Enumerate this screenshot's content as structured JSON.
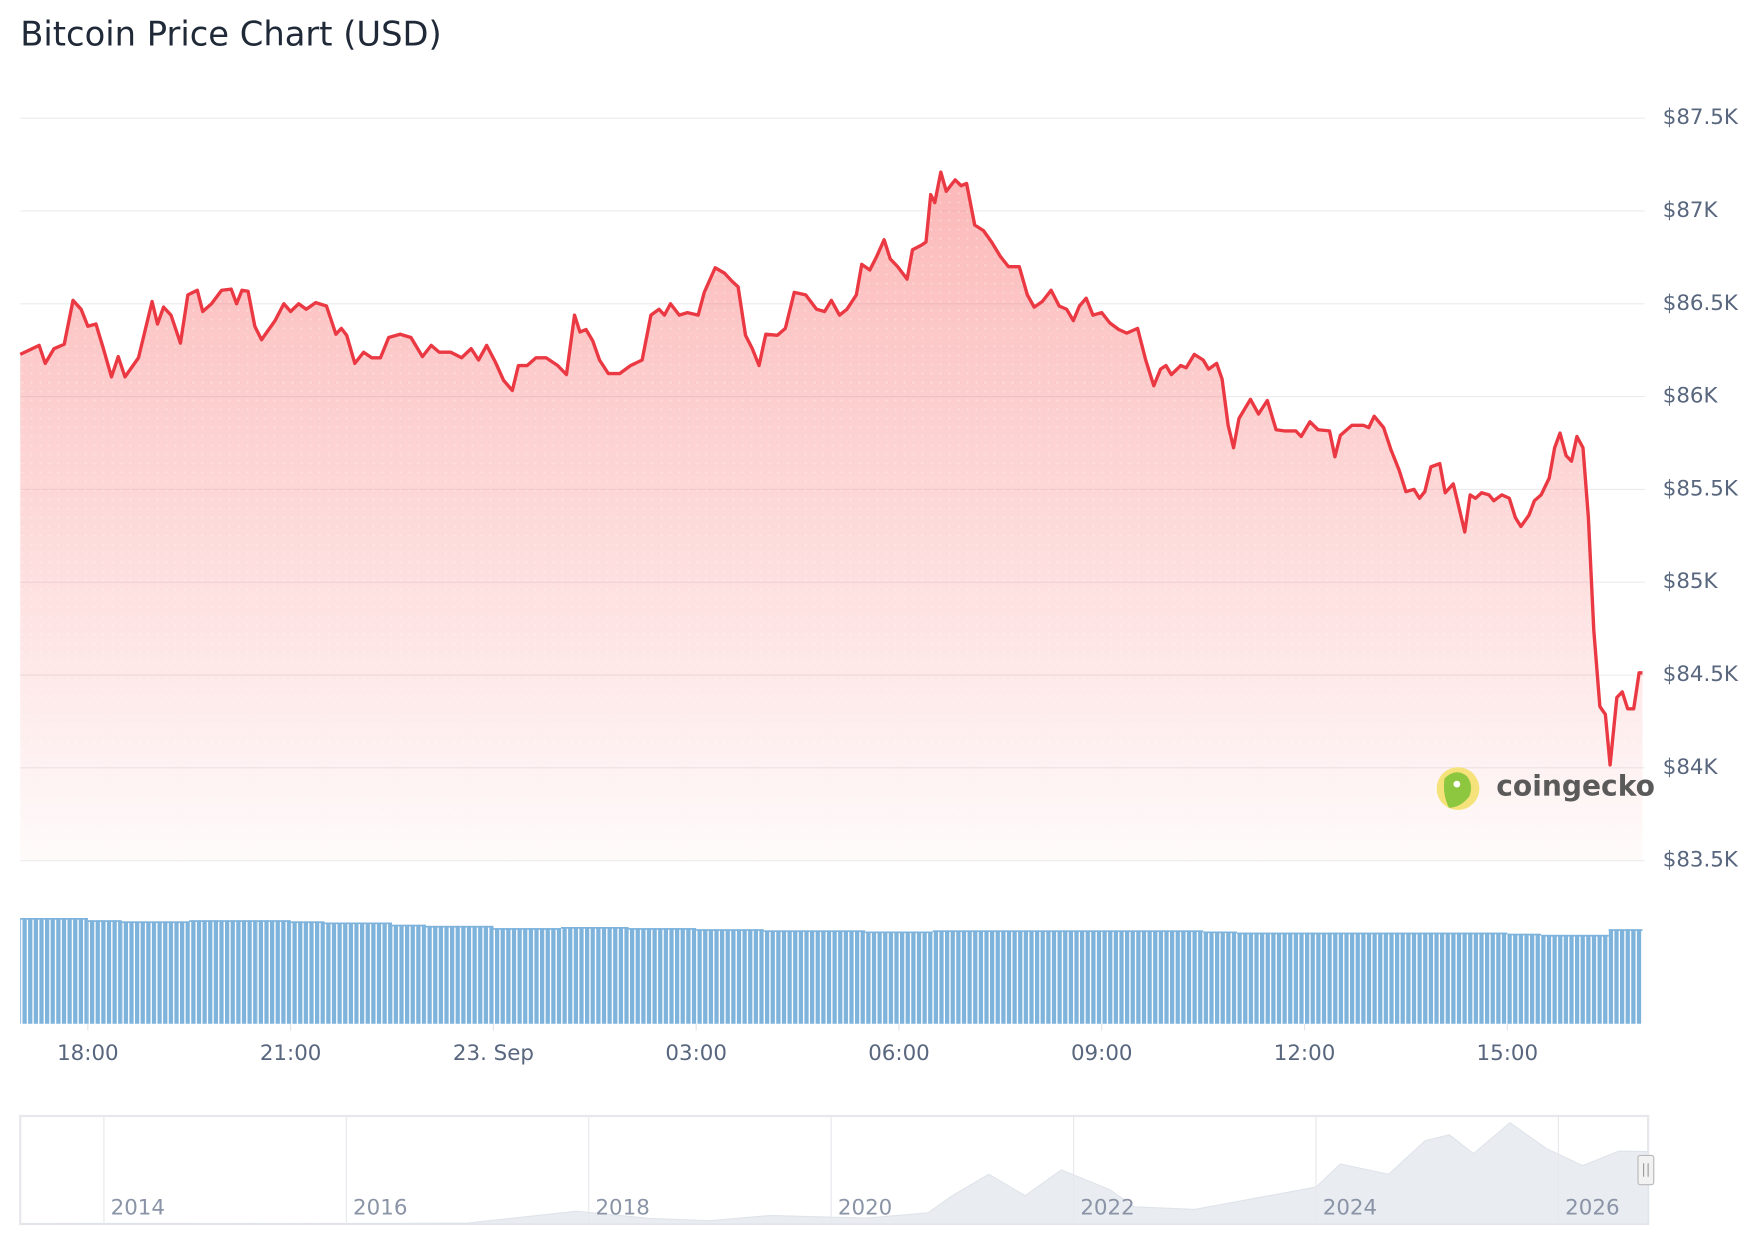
{
  "chart_data": {
    "type": "line",
    "title": "Bitcoin Price Chart (USD)",
    "x": [
      17.0,
      17.28,
      17.37,
      17.5,
      17.65,
      17.78,
      17.9,
      18.0,
      18.12,
      18.23,
      18.35,
      18.45,
      18.55,
      18.75,
      18.95,
      19.03,
      19.12,
      19.23,
      19.37,
      19.48,
      19.62,
      19.7,
      19.83,
      19.98,
      20.12,
      20.2,
      20.28,
      20.37,
      20.47,
      20.57,
      20.65,
      20.77,
      20.9,
      21.0,
      21.12,
      21.23,
      21.37,
      21.53,
      21.67,
      21.75,
      21.83,
      21.95,
      22.08,
      22.2,
      22.33,
      22.45,
      22.62,
      22.78,
      22.95,
      23.08,
      23.2,
      23.37,
      23.53,
      23.67,
      23.78,
      23.9,
      24.03,
      24.15,
      24.28,
      24.37,
      24.5,
      24.63,
      24.78,
      24.95,
      25.08,
      25.2,
      25.28,
      25.37,
      25.47,
      25.57,
      25.7,
      25.87,
      26.03,
      26.2,
      26.33,
      26.45,
      26.53,
      26.62,
      26.75,
      26.87,
      27.03,
      27.12,
      27.28,
      27.42,
      27.53,
      27.62,
      27.73,
      27.83,
      27.93,
      28.03,
      28.2,
      28.32,
      28.45,
      28.62,
      28.78,
      28.9,
      29.0,
      29.12,
      29.23,
      29.37,
      29.45,
      29.57,
      29.67,
      29.78,
      29.87,
      29.98,
      30.12,
      30.2,
      30.33,
      30.4,
      30.47,
      30.53,
      30.62,
      30.7,
      30.83,
      30.92,
      31.0,
      31.12,
      31.25,
      31.37,
      31.5,
      31.62,
      31.78,
      31.9,
      32.0,
      32.12,
      32.25,
      32.37,
      32.48,
      32.58,
      32.67,
      32.77,
      32.87,
      33.0,
      33.12,
      33.25,
      33.37,
      33.53,
      33.65,
      33.77,
      33.87,
      33.95,
      34.03,
      34.17,
      34.25,
      34.37,
      34.5,
      34.58,
      34.7,
      34.78,
      34.87,
      34.95,
      35.03,
      35.2,
      35.32,
      35.45,
      35.58,
      35.7,
      35.87,
      35.95,
      36.08,
      36.2,
      36.37,
      36.45,
      36.53,
      36.7,
      36.87,
      36.95,
      37.03,
      37.17,
      37.28,
      37.4,
      37.5,
      37.62,
      37.7,
      37.78,
      37.87,
      38.0,
      38.08,
      38.2,
      38.28,
      38.37,
      38.45,
      38.53,
      38.62,
      38.73,
      38.8,
      38.92,
      39.03,
      39.12,
      39.2,
      39.32,
      39.4,
      39.5,
      39.62,
      39.7,
      39.78,
      39.87,
      39.95,
      40.03,
      40.12,
      40.2,
      40.28,
      40.37,
      40.45,
      40.52,
      40.62,
      40.7,
      40.78,
      40.87,
      40.95,
      41.0
    ],
    "values": [
      86227,
      86276,
      86179,
      86258,
      86282,
      86518,
      86470,
      86379,
      86391,
      86258,
      86106,
      86215,
      86106,
      86209,
      86512,
      86391,
      86482,
      86439,
      86288,
      86548,
      86573,
      86458,
      86500,
      86573,
      86579,
      86500,
      86573,
      86567,
      86379,
      86306,
      86348,
      86409,
      86500,
      86458,
      86500,
      86470,
      86506,
      86488,
      86336,
      86367,
      86330,
      86179,
      86239,
      86209,
      86209,
      86318,
      86336,
      86318,
      86215,
      86276,
      86239,
      86239,
      86209,
      86258,
      86197,
      86276,
      86185,
      86088,
      86033,
      86167,
      86167,
      86209,
      86209,
      86167,
      86118,
      86439,
      86348,
      86361,
      86300,
      86197,
      86124,
      86124,
      86167,
      86197,
      86439,
      86470,
      86439,
      86500,
      86439,
      86452,
      86439,
      86561,
      86694,
      86664,
      86621,
      86591,
      86330,
      86258,
      86167,
      86336,
      86330,
      86367,
      86561,
      86548,
      86470,
      86458,
      86518,
      86439,
      86470,
      86548,
      86712,
      86682,
      86755,
      86845,
      86742,
      86700,
      86633,
      86791,
      86815,
      86833,
      87088,
      87045,
      87209,
      87106,
      87167,
      87136,
      87148,
      86924,
      86894,
      86833,
      86755,
      86700,
      86700,
      86548,
      86482,
      86512,
      86573,
      86488,
      86470,
      86409,
      86488,
      86530,
      86439,
      86452,
      86397,
      86361,
      86342,
      86367,
      86197,
      86058,
      86148,
      86167,
      86118,
      86167,
      86155,
      86227,
      86197,
      86148,
      86179,
      86094,
      85845,
      85724,
      85882,
      85985,
      85906,
      85979,
      85821,
      85815,
      85815,
      85785,
      85864,
      85821,
      85815,
      85676,
      85791,
      85845,
      85845,
      85833,
      85894,
      85833,
      85712,
      85603,
      85488,
      85500,
      85452,
      85488,
      85621,
      85639,
      85482,
      85530,
      85409,
      85270,
      85470,
      85452,
      85482,
      85470,
      85439,
      85470,
      85452,
      85348,
      85300,
      85361,
      85439,
      85470,
      85561,
      85724,
      85803,
      85682,
      85652,
      85785,
      85724,
      85348,
      84742,
      84330,
      84288,
      84015,
      84379,
      84409,
      84318,
      84318,
      84512,
      84512
    ],
    "color": "#ea3943",
    "xlim": [
      17,
      41
    ],
    "xticks": [
      {
        "value": 18,
        "label": "18:00"
      },
      {
        "value": 21,
        "label": "21:00"
      },
      {
        "value": 24,
        "label": "23. Sep"
      },
      {
        "value": 27,
        "label": "03:00"
      },
      {
        "value": 30,
        "label": "06:00"
      },
      {
        "value": 33,
        "label": "09:00"
      },
      {
        "value": 36,
        "label": "12:00"
      },
      {
        "value": 39,
        "label": "15:00"
      }
    ],
    "ylim": [
      83500,
      87500
    ],
    "yticks": [
      {
        "value": 83500,
        "label": "$83.5K"
      },
      {
        "value": 84000,
        "label": "$84K"
      },
      {
        "value": 84500,
        "label": "$84.5K"
      },
      {
        "value": 85000,
        "label": "$85K"
      },
      {
        "value": 85500,
        "label": "$85.5K"
      },
      {
        "value": 86000,
        "label": "$86K"
      },
      {
        "value": 86500,
        "label": "$86.5K"
      },
      {
        "value": 87000,
        "label": "$87K"
      },
      {
        "value": 87500,
        "label": "$87.5K"
      }
    ],
    "grid": true,
    "watermark": "coingecko",
    "volume": {
      "color": "#7eb3dc",
      "values": [
        94,
        94,
        92,
        91,
        91,
        92,
        92,
        92,
        91,
        90,
        90,
        88,
        87,
        87,
        85,
        85,
        86,
        86,
        85,
        85,
        84,
        84,
        83,
        83,
        83,
        82,
        82,
        83,
        83,
        83,
        83,
        83,
        83,
        83,
        83,
        82,
        81,
        81,
        81,
        81,
        81,
        81,
        81,
        81,
        80,
        79,
        79,
        84
      ]
    },
    "navigator": {
      "x": [
        2013.31,
        2014.0,
        2015.0,
        2016.0,
        2017.0,
        2017.9,
        2018.5,
        2019.0,
        2019.5,
        2020.0,
        2020.3,
        2020.8,
        2021.0,
        2021.3,
        2021.6,
        2021.9,
        2022.3,
        2022.5,
        2023.0,
        2023.5,
        2024.0,
        2024.2,
        2024.6,
        2024.9,
        2025.1,
        2025.3,
        2025.6,
        2025.9,
        2026.2,
        2026.5,
        2026.74
      ],
      "values": [
        100,
        600,
        250,
        430,
        1000,
        15000,
        6500,
        3800,
        10000,
        8000,
        7000,
        13000,
        33000,
        58000,
        33000,
        63000,
        40000,
        20000,
        17000,
        30000,
        43000,
        70000,
        58000,
        97000,
        104000,
        82000,
        118000,
        88000,
        68000,
        85000,
        84500
      ],
      "xlim": [
        2013.31,
        2026.74
      ],
      "xticks": [
        2014,
        2016,
        2018,
        2020,
        2022,
        2024,
        2026
      ]
    }
  }
}
